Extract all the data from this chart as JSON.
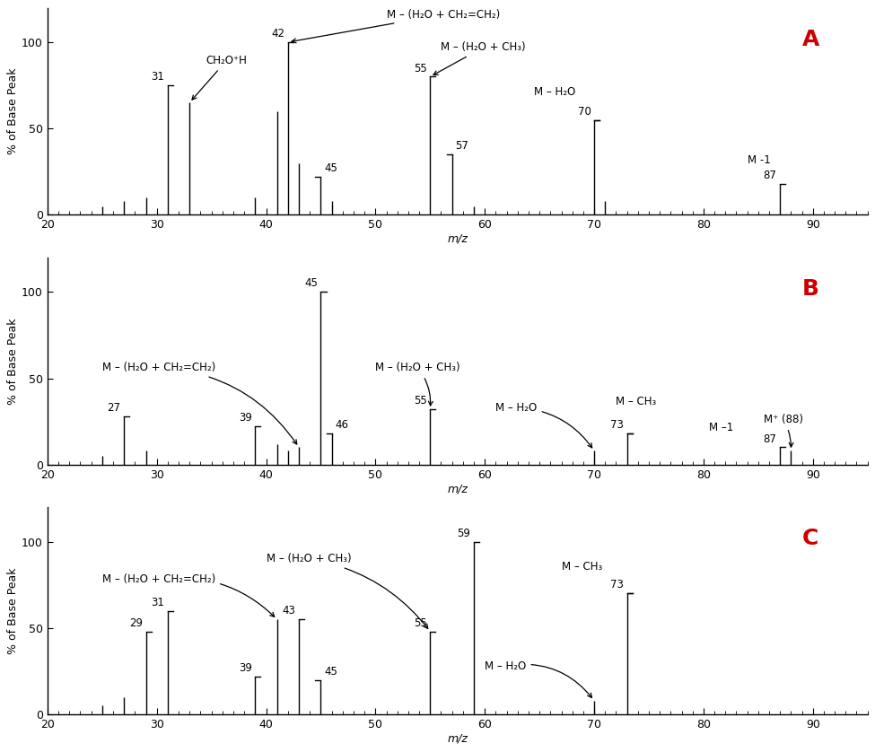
{
  "spectra": [
    {
      "label": "A",
      "peaks": [
        {
          "mz": 25,
          "intensity": 5
        },
        {
          "mz": 27,
          "intensity": 8
        },
        {
          "mz": 29,
          "intensity": 10
        },
        {
          "mz": 31,
          "intensity": 75
        },
        {
          "mz": 33,
          "intensity": 65
        },
        {
          "mz": 39,
          "intensity": 10
        },
        {
          "mz": 41,
          "intensity": 60
        },
        {
          "mz": 42,
          "intensity": 100
        },
        {
          "mz": 43,
          "intensity": 30
        },
        {
          "mz": 45,
          "intensity": 22
        },
        {
          "mz": 46,
          "intensity": 8
        },
        {
          "mz": 55,
          "intensity": 80
        },
        {
          "mz": 57,
          "intensity": 35
        },
        {
          "mz": 59,
          "intensity": 5
        },
        {
          "mz": 70,
          "intensity": 55
        },
        {
          "mz": 71,
          "intensity": 8
        },
        {
          "mz": 87,
          "intensity": 18
        }
      ],
      "peak_labels": [
        {
          "mz": 42,
          "intensity": 100,
          "label": "42",
          "side": "left"
        },
        {
          "mz": 31,
          "intensity": 75,
          "label": "31",
          "side": "left"
        },
        {
          "mz": 45,
          "intensity": 22,
          "label": "45",
          "side": "right"
        },
        {
          "mz": 55,
          "intensity": 80,
          "label": "55",
          "side": "left"
        },
        {
          "mz": 57,
          "intensity": 35,
          "label": "57",
          "side": "right"
        },
        {
          "mz": 70,
          "intensity": 55,
          "label": "70",
          "side": "left"
        },
        {
          "mz": 87,
          "intensity": 18,
          "label": "87",
          "side": "left"
        }
      ]
    },
    {
      "label": "B",
      "peaks": [
        {
          "mz": 25,
          "intensity": 5
        },
        {
          "mz": 27,
          "intensity": 28
        },
        {
          "mz": 29,
          "intensity": 8
        },
        {
          "mz": 39,
          "intensity": 22
        },
        {
          "mz": 41,
          "intensity": 12
        },
        {
          "mz": 42,
          "intensity": 8
        },
        {
          "mz": 43,
          "intensity": 10
        },
        {
          "mz": 45,
          "intensity": 100
        },
        {
          "mz": 46,
          "intensity": 18
        },
        {
          "mz": 55,
          "intensity": 32
        },
        {
          "mz": 70,
          "intensity": 8
        },
        {
          "mz": 73,
          "intensity": 18
        },
        {
          "mz": 87,
          "intensity": 10
        },
        {
          "mz": 88,
          "intensity": 8
        }
      ],
      "peak_labels": [
        {
          "mz": 27,
          "intensity": 28,
          "label": "27",
          "side": "left"
        },
        {
          "mz": 39,
          "intensity": 22,
          "label": "39",
          "side": "left"
        },
        {
          "mz": 45,
          "intensity": 100,
          "label": "45",
          "side": "left"
        },
        {
          "mz": 46,
          "intensity": 18,
          "label": "46",
          "side": "right"
        },
        {
          "mz": 55,
          "intensity": 32,
          "label": "55",
          "side": "left"
        },
        {
          "mz": 73,
          "intensity": 18,
          "label": "73",
          "side": "left"
        },
        {
          "mz": 87,
          "intensity": 10,
          "label": "87",
          "side": "left"
        }
      ]
    },
    {
      "label": "C",
      "peaks": [
        {
          "mz": 25,
          "intensity": 5
        },
        {
          "mz": 27,
          "intensity": 10
        },
        {
          "mz": 29,
          "intensity": 48
        },
        {
          "mz": 31,
          "intensity": 60
        },
        {
          "mz": 39,
          "intensity": 22
        },
        {
          "mz": 41,
          "intensity": 55
        },
        {
          "mz": 43,
          "intensity": 55
        },
        {
          "mz": 45,
          "intensity": 20
        },
        {
          "mz": 55,
          "intensity": 48
        },
        {
          "mz": 59,
          "intensity": 100
        },
        {
          "mz": 70,
          "intensity": 8
        },
        {
          "mz": 73,
          "intensity": 70
        }
      ],
      "peak_labels": [
        {
          "mz": 29,
          "intensity": 48,
          "label": "29",
          "side": "left"
        },
        {
          "mz": 31,
          "intensity": 60,
          "label": "31",
          "side": "left"
        },
        {
          "mz": 39,
          "intensity": 22,
          "label": "39",
          "side": "left"
        },
        {
          "mz": 43,
          "intensity": 55,
          "label": "43",
          "side": "left"
        },
        {
          "mz": 45,
          "intensity": 20,
          "label": "45",
          "side": "right"
        },
        {
          "mz": 55,
          "intensity": 48,
          "label": "55",
          "side": "left"
        },
        {
          "mz": 59,
          "intensity": 100,
          "label": "59",
          "side": "left"
        },
        {
          "mz": 73,
          "intensity": 70,
          "label": "73",
          "side": "left"
        }
      ]
    }
  ],
  "xlabel": "m/z",
  "ylabel": "% of Base Peak",
  "xlim": [
    20,
    95
  ],
  "ylim": [
    0,
    120
  ],
  "xticks": [
    20,
    30,
    40,
    50,
    60,
    70,
    80,
    90
  ],
  "yticks": [
    0,
    50,
    100
  ],
  "bg_color": "#ffffff",
  "peak_color": "#000000",
  "label_color_red": "#cc0000",
  "fontsize_label": 8.5,
  "fontsize_axis": 9,
  "fontsize_letter": 18
}
